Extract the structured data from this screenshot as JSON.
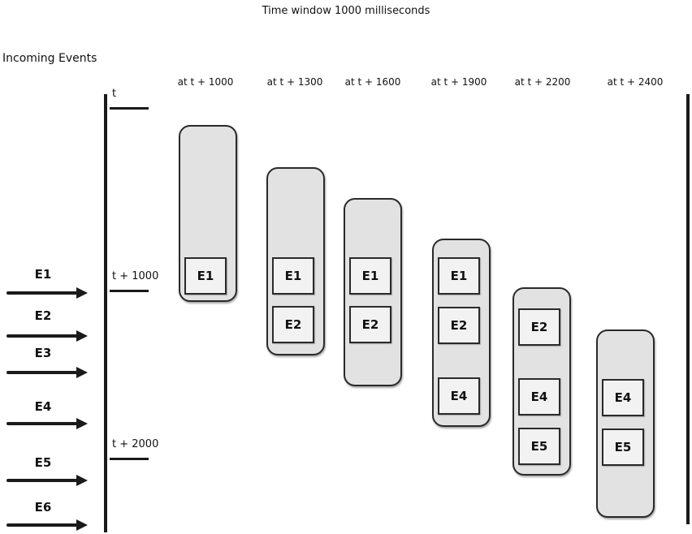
{
  "title": "Time window 1000 milliseconds",
  "incoming_label": "Incoming Events",
  "ticks": [
    {
      "label": "t"
    },
    {
      "label": "t + 1000"
    },
    {
      "label": "t + 2000"
    }
  ],
  "incoming_events": [
    "E1",
    "E2",
    "E3",
    "E4",
    "E5",
    "E6"
  ],
  "windows": [
    {
      "label": "at t + 1000",
      "events": [
        "E1"
      ]
    },
    {
      "label": "at t + 1300",
      "events": [
        "E1",
        "E2"
      ]
    },
    {
      "label": "at t + 1600",
      "events": [
        "E1",
        "E2"
      ]
    },
    {
      "label": "at t + 1900",
      "events": [
        "E1",
        "E2",
        "E4"
      ]
    },
    {
      "label": "at t + 2200",
      "events": [
        "E2",
        "E4",
        "E5"
      ]
    },
    {
      "label": "at t + 2400",
      "events": [
        "E4",
        "E5"
      ]
    }
  ]
}
